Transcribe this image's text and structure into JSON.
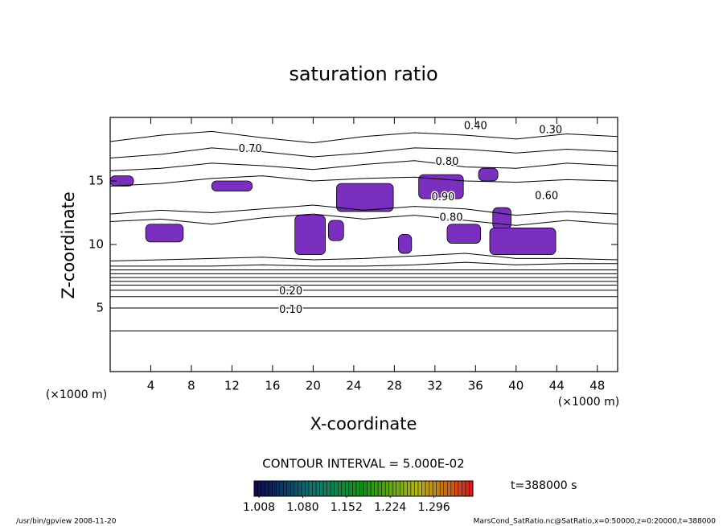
{
  "chart_data": {
    "type": "contour",
    "title": "saturation ratio",
    "xlabel": "X-coordinate",
    "ylabel": "Z-coordinate",
    "x_unit_left": "(×1000 m)",
    "x_unit_right": "(×1000 m)",
    "xlim": [
      0,
      50
    ],
    "ylim": [
      0,
      20
    ],
    "xticks": [
      4,
      8,
      12,
      16,
      20,
      24,
      28,
      32,
      36,
      40,
      44,
      48
    ],
    "yticks": [
      5,
      10,
      15
    ],
    "contour_x": [
      0,
      5,
      10,
      15,
      20,
      25,
      30,
      35,
      40,
      45,
      50
    ],
    "contour_lines": [
      {
        "z": [
          3.2,
          3.2,
          3.2,
          3.2,
          3.2,
          3.2,
          3.2,
          3.2,
          3.2,
          3.2,
          3.2
        ]
      },
      {
        "z": [
          5.0,
          5.0,
          5.0,
          5.0,
          5.0,
          5.0,
          5.0,
          5.0,
          5.0,
          5.0,
          5.0
        ]
      },
      {
        "z": [
          5.9,
          5.9,
          5.9,
          5.9,
          5.9,
          5.9,
          5.9,
          5.9,
          5.9,
          5.9,
          5.9
        ]
      },
      {
        "z": [
          6.4,
          6.4,
          6.4,
          6.4,
          6.4,
          6.4,
          6.4,
          6.4,
          6.4,
          6.4,
          6.4
        ]
      },
      {
        "z": [
          6.8,
          6.8,
          6.8,
          6.8,
          6.8,
          6.8,
          6.8,
          6.8,
          6.8,
          6.8,
          6.8
        ]
      },
      {
        "z": [
          7.1,
          7.1,
          7.1,
          7.1,
          7.1,
          7.1,
          7.1,
          7.1,
          7.1,
          7.1,
          7.1
        ]
      },
      {
        "z": [
          7.4,
          7.4,
          7.4,
          7.4,
          7.4,
          7.4,
          7.4,
          7.4,
          7.4,
          7.4,
          7.4
        ]
      },
      {
        "z": [
          7.7,
          7.7,
          7.7,
          7.7,
          7.7,
          7.7,
          7.7,
          7.7,
          7.7,
          7.7,
          7.7
        ]
      },
      {
        "z": [
          8.0,
          8.0,
          8.0,
          8.0,
          8.0,
          8.0,
          8.0,
          8.0,
          8.0,
          8.0,
          8.0
        ]
      },
      {
        "z": [
          8.3,
          8.3,
          8.3,
          8.4,
          8.3,
          8.3,
          8.4,
          8.6,
          8.4,
          8.5,
          8.5
        ]
      },
      {
        "z": [
          8.7,
          8.8,
          8.9,
          9.0,
          8.8,
          8.9,
          9.1,
          9.3,
          8.9,
          8.9,
          8.8
        ]
      },
      {
        "z": [
          11.8,
          12.0,
          11.6,
          12.1,
          12.4,
          12.0,
          12.3,
          11.9,
          11.5,
          11.9,
          11.6
        ]
      },
      {
        "z": [
          12.4,
          12.7,
          12.5,
          12.8,
          13.1,
          12.7,
          13.0,
          12.8,
          12.3,
          12.6,
          12.4
        ]
      },
      {
        "z": [
          14.6,
          14.8,
          15.2,
          15.4,
          15.0,
          15.2,
          15.3,
          15.0,
          14.9,
          15.1,
          15.0
        ]
      },
      {
        "z": [
          15.8,
          16.0,
          16.4,
          16.2,
          15.9,
          16.3,
          16.6,
          16.1,
          16.0,
          16.4,
          16.2
        ]
      },
      {
        "z": [
          16.8,
          17.1,
          17.6,
          17.3,
          16.9,
          17.2,
          17.6,
          17.5,
          17.2,
          17.5,
          17.3
        ]
      },
      {
        "z": [
          18.1,
          18.6,
          18.9,
          18.4,
          18.0,
          18.5,
          18.8,
          18.6,
          18.3,
          18.7,
          18.5
        ]
      }
    ],
    "regions": [
      {
        "x": [
          0,
          2.3
        ],
        "z": [
          14.6,
          15.4
        ]
      },
      {
        "x": [
          3.5,
          7.2
        ],
        "z": [
          10.2,
          11.6
        ]
      },
      {
        "x": [
          10,
          14
        ],
        "z": [
          14.2,
          15
        ]
      },
      {
        "x": [
          18.2,
          21.2
        ],
        "z": [
          9.2,
          12.3
        ]
      },
      {
        "x": [
          21.5,
          23
        ],
        "z": [
          10.3,
          11.9
        ]
      },
      {
        "x": [
          22.3,
          27.9
        ],
        "z": [
          12.6,
          14.8
        ]
      },
      {
        "x": [
          28.4,
          29.7
        ],
        "z": [
          9.3,
          10.8
        ]
      },
      {
        "x": [
          30.4,
          34.8
        ],
        "z": [
          13.6,
          15.5
        ]
      },
      {
        "x": [
          33.2,
          36.5
        ],
        "z": [
          10.1,
          11.6
        ]
      },
      {
        "x": [
          36.3,
          38.2
        ],
        "z": [
          15,
          16
        ]
      },
      {
        "x": [
          37.7,
          39.5
        ],
        "z": [
          11.2,
          12.9
        ]
      },
      {
        "x": [
          37.4,
          43.9
        ],
        "z": [
          9.2,
          11.3
        ]
      }
    ],
    "region_color": "#7b2fbe",
    "contour_labels": [
      {
        "text": "0.40",
        "x": 36,
        "z": 19.3
      },
      {
        "text": "0.30",
        "x": 43.4,
        "z": 19
      },
      {
        "text": "0.70",
        "x": 13.8,
        "z": 17.5
      },
      {
        "text": "0.80",
        "x": 33.2,
        "z": 16.5
      },
      {
        "text": "0.90",
        "x": 32.8,
        "z": 13.7
      },
      {
        "text": "0.80",
        "x": 33.6,
        "z": 12.1
      },
      {
        "text": "0.60",
        "x": 43,
        "z": 13.8
      },
      {
        "text": "0.20",
        "x": 17.8,
        "z": 6.3
      },
      {
        "text": "0.10",
        "x": 17.8,
        "z": 4.85
      }
    ],
    "contour_interval": "CONTOUR INTERVAL = 5.000E-02",
    "time_label": "t=388000 s",
    "clim": [
      1.0,
      1.36
    ],
    "cticks": [
      {
        "value": 1.008,
        "label": "1.008"
      },
      {
        "value": 1.08,
        "label": "1.080"
      },
      {
        "value": 1.152,
        "label": "1.152"
      },
      {
        "value": 1.224,
        "label": "1.224"
      },
      {
        "value": 1.296,
        "label": "1.296"
      }
    ],
    "footer_left": "/usr/bin/gpview  2008-11-20",
    "footer_right": "MarsCond_SatRatio.nc@SatRatio,x=0:50000,z=0:20000,t=388000"
  }
}
